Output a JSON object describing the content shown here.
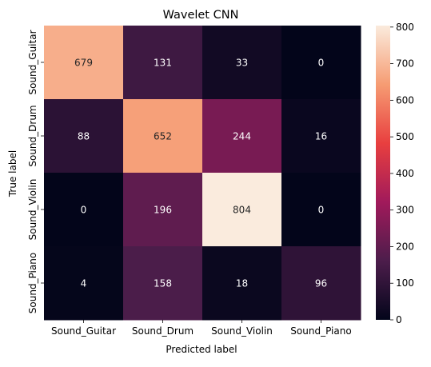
{
  "chart_data": {
    "type": "heatmap",
    "title": "Wavelet CNN",
    "xlabel": "Predicted label",
    "ylabel": "True label",
    "x_categories": [
      "Sound_Guitar",
      "Sound_Drum",
      "Sound_Violin",
      "Sound_Piano"
    ],
    "y_categories": [
      "Sound_Guitar",
      "Sound_Drum",
      "Sound_Violin",
      "Sound_Piano"
    ],
    "values": [
      [
        679,
        131,
        33,
        0
      ],
      [
        88,
        652,
        244,
        16
      ],
      [
        0,
        196,
        804,
        0
      ],
      [
        4,
        158,
        18,
        96
      ]
    ],
    "colorbar": {
      "vmin": 0,
      "vmax": 804,
      "ticks": [
        0,
        100,
        200,
        300,
        400,
        500,
        600,
        700,
        800
      ],
      "colormap": "rocket",
      "color_stops": [
        "#03051a",
        "#4c1d4b",
        "#a11a5b",
        "#e83f3f",
        "#f69c73",
        "#faebdd"
      ]
    }
  }
}
